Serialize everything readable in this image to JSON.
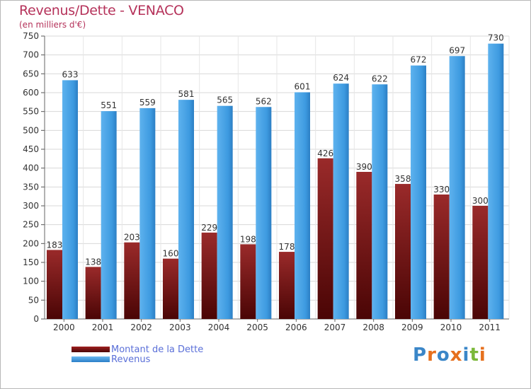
{
  "title": "Revenus/Dette - VENACO",
  "subtitle": "(en milliers d'€)",
  "logo": {
    "text": "Proxiti",
    "colors": [
      "#3a86c8",
      "#e6701e",
      "#3a86c8",
      "#e6701e",
      "#3a86c8",
      "#7bb83a",
      "#e6701e"
    ]
  },
  "legend": [
    {
      "label": "Montant de la Dette",
      "color": "#7a1414"
    },
    {
      "label": "Revenus",
      "color": "#3d9ae0"
    }
  ],
  "chart_data": {
    "type": "bar",
    "categories": [
      "2000",
      "2001",
      "2002",
      "2003",
      "2004",
      "2005",
      "2006",
      "2007",
      "2008",
      "2009",
      "2010",
      "2011"
    ],
    "series": [
      {
        "name": "Montant de la Dette",
        "values": [
          183,
          138,
          203,
          160,
          229,
          198,
          178,
          426,
          390,
          358,
          330,
          300
        ],
        "color": "#7a1414"
      },
      {
        "name": "Revenus",
        "values": [
          633,
          551,
          559,
          581,
          565,
          562,
          601,
          624,
          622,
          672,
          697,
          730
        ],
        "color": "#3d9ae0"
      }
    ],
    "yticks": [
      0,
      50,
      100,
      150,
      200,
      250,
      300,
      350,
      400,
      450,
      500,
      550,
      600,
      650,
      700,
      750
    ],
    "ylim": [
      0,
      750
    ],
    "grid": true,
    "legend_position": "bottom-left"
  }
}
